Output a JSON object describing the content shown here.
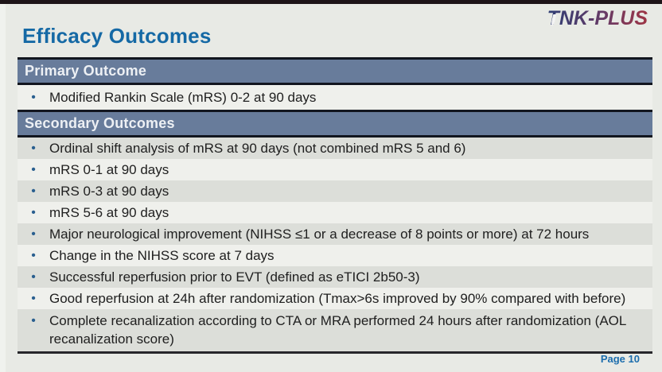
{
  "logo": {
    "text": "TNK-PLUS"
  },
  "title": "Efficacy Outcomes",
  "bullet_glyph": "•",
  "sections": [
    {
      "header": "Primary Outcome",
      "items": [
        "Modified Rankin Scale (mRS) 0-2 at 90 days"
      ]
    },
    {
      "header": "Secondary Outcomes",
      "items": [
        "Ordinal shift analysis of mRS at 90 days (not combined mRS 5 and 6)",
        "mRS 0-1 at 90 days",
        "mRS 0-3 at 90 days",
        "mRS 5-6 at 90 days",
        "Major neurological improvement (NIHSS ≤1 or a decrease of 8 points or more) at 72 hours",
        "Change in the NIHSS score at 7 days",
        "Successful reperfusion prior to EVT (defined as eTICI 2b50-3)",
        "Good reperfusion at 24h after randomization (Tmax>6s improved by 90% compared with before)",
        "Complete recanalization according to CTA or MRA performed 24 hours after randomization (AOL recanalization score)"
      ]
    }
  ],
  "footer": {
    "page_label": "Page 10"
  },
  "colors": {
    "bg": "#e8eae5",
    "row_light": "#eff0ec",
    "stripe": "#dcded9",
    "bar_fill": "#687c9b",
    "bar_border": "#12161f",
    "title_blue": "#1569a5",
    "text": "#202020",
    "bullet": "#2a5f8f",
    "page_blue": "#1b6dad",
    "top_bar": "#1d1418",
    "logo_start": "#2e3d74",
    "logo_mid": "#653a66",
    "logo_end": "#9e3545"
  }
}
